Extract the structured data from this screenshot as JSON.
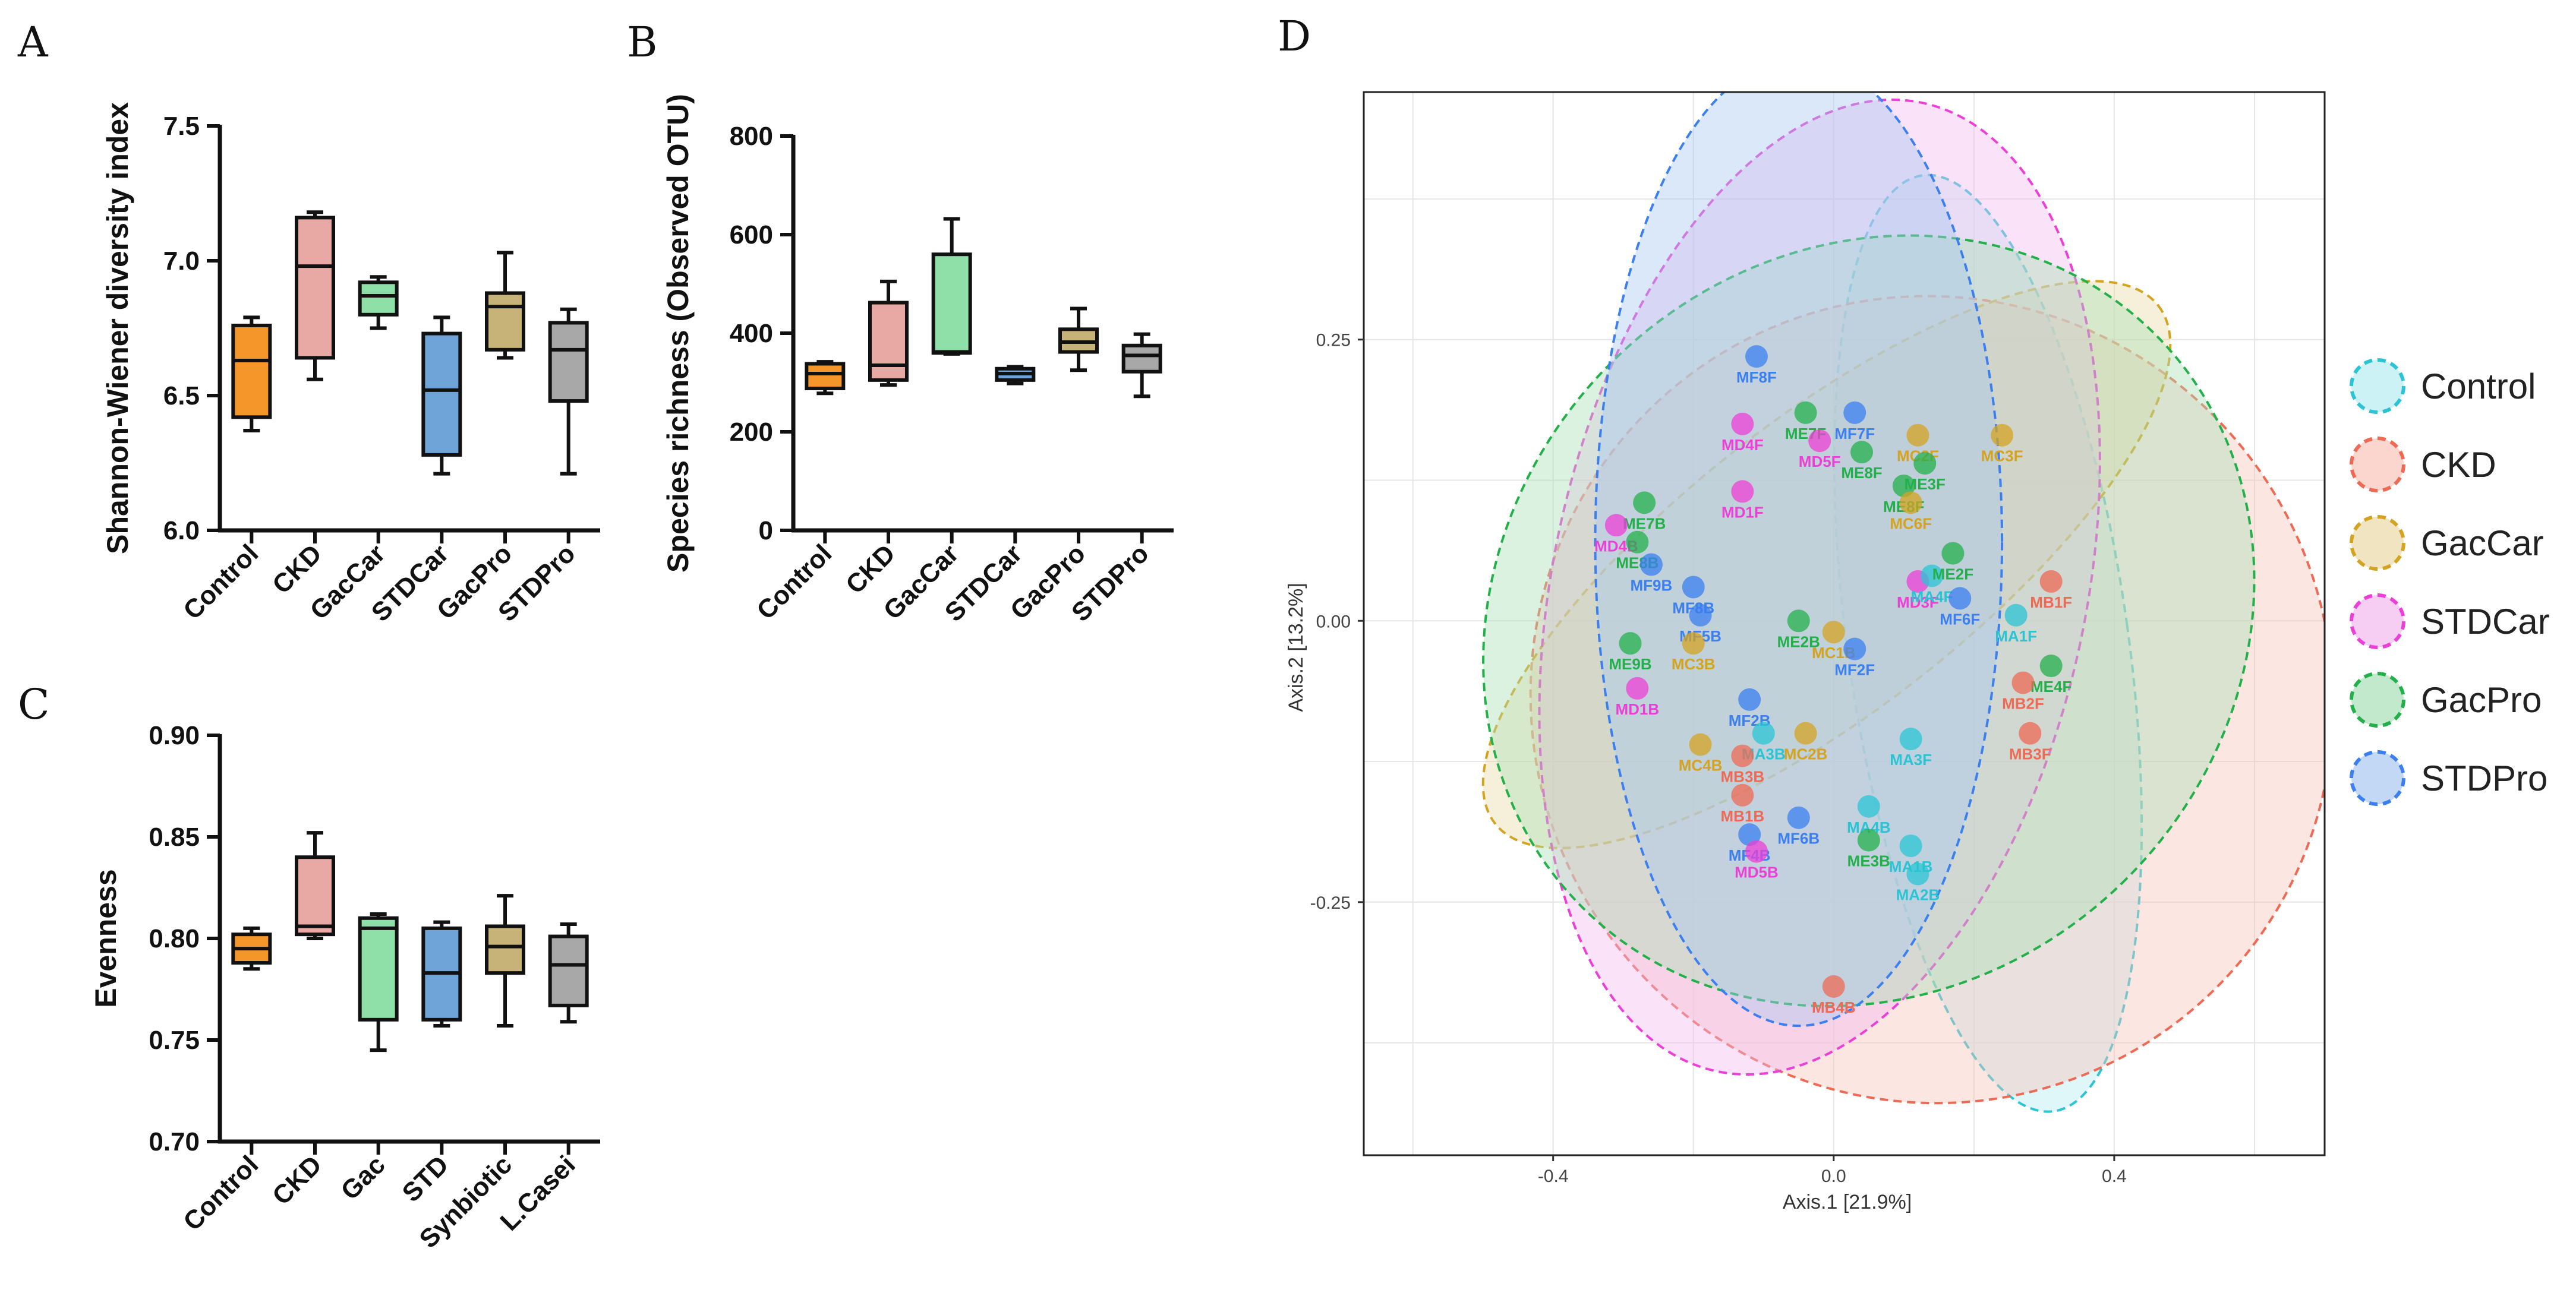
{
  "chart_data": [
    {
      "id": "A",
      "type": "boxplot",
      "panel_label": "A",
      "ylabel": "Shannon-Wiener diversity index",
      "ylim": [
        6.0,
        7.5
      ],
      "yticks": [
        "6.0",
        "6.5",
        "7.0",
        "7.5"
      ],
      "categories": [
        "Control",
        "CKD",
        "GacCar",
        "STDCar",
        "GacPro",
        "STDPro"
      ],
      "colors": [
        "#f5962b",
        "#e8a9a5",
        "#8ee0a8",
        "#6fa4d8",
        "#c7b377",
        "#a8a8a8"
      ],
      "boxes": [
        {
          "min": 6.37,
          "q1": 6.42,
          "median": 6.63,
          "q3": 6.76,
          "max": 6.79
        },
        {
          "min": 6.56,
          "q1": 6.64,
          "median": 6.98,
          "q3": 7.16,
          "max": 7.18
        },
        {
          "min": 6.75,
          "q1": 6.8,
          "median": 6.87,
          "q3": 6.92,
          "max": 6.94
        },
        {
          "min": 6.21,
          "q1": 6.28,
          "median": 6.52,
          "q3": 6.73,
          "max": 6.79
        },
        {
          "min": 6.64,
          "q1": 6.67,
          "median": 6.83,
          "q3": 6.88,
          "max": 7.03
        },
        {
          "min": 6.21,
          "q1": 6.48,
          "median": 6.67,
          "q3": 6.77,
          "max": 6.82
        }
      ]
    },
    {
      "id": "B",
      "type": "boxplot",
      "panel_label": "B",
      "ylabel": "Species richness (Observed OTU)",
      "ylim": [
        0,
        800
      ],
      "yticks": [
        "0",
        "200",
        "400",
        "600",
        "800"
      ],
      "categories": [
        "Control",
        "CKD",
        "GacCar",
        "STDCar",
        "GacPro",
        "STDPro"
      ],
      "colors": [
        "#f5962b",
        "#e8a9a5",
        "#8ee0a8",
        "#6fa4d8",
        "#c7b377",
        "#a8a8a8"
      ],
      "boxes": [
        {
          "min": 278,
          "q1": 288,
          "median": 318,
          "q3": 338,
          "max": 342
        },
        {
          "min": 295,
          "q1": 305,
          "median": 335,
          "q3": 462,
          "max": 505
        },
        {
          "min": 358,
          "q1": 360,
          "median": 362,
          "q3": 560,
          "max": 632
        },
        {
          "min": 298,
          "q1": 305,
          "median": 318,
          "q3": 328,
          "max": 332
        },
        {
          "min": 325,
          "q1": 362,
          "median": 382,
          "q3": 408,
          "max": 450
        },
        {
          "min": 272,
          "q1": 322,
          "median": 355,
          "q3": 375,
          "max": 398
        }
      ]
    },
    {
      "id": "C",
      "type": "boxplot",
      "panel_label": "C",
      "ylabel": "Evenness",
      "ylim": [
        0.7,
        0.9
      ],
      "yticks": [
        "0.70",
        "0.75",
        "0.80",
        "0.85",
        "0.90"
      ],
      "categories": [
        "Control",
        "CKD",
        "Gac",
        "STD",
        "Synbiotic",
        "L.Casei"
      ],
      "colors": [
        "#f5962b",
        "#e8a9a5",
        "#8ee0a8",
        "#6fa4d8",
        "#c7b377",
        "#a8a8a8"
      ],
      "boxes": [
        {
          "min": 0.785,
          "q1": 0.788,
          "median": 0.795,
          "q3": 0.802,
          "max": 0.805
        },
        {
          "min": 0.8,
          "q1": 0.802,
          "median": 0.806,
          "q3": 0.84,
          "max": 0.852
        },
        {
          "min": 0.745,
          "q1": 0.76,
          "median": 0.805,
          "q3": 0.81,
          "max": 0.812
        },
        {
          "min": 0.757,
          "q1": 0.76,
          "median": 0.783,
          "q3": 0.805,
          "max": 0.808
        },
        {
          "min": 0.757,
          "q1": 0.783,
          "median": 0.796,
          "q3": 0.806,
          "max": 0.821
        },
        {
          "min": 0.759,
          "q1": 0.767,
          "median": 0.787,
          "q3": 0.801,
          "max": 0.807
        }
      ]
    },
    {
      "id": "D",
      "type": "scatter",
      "panel_label": "D",
      "xlabel": "Axis.1   [21.9%]",
      "ylabel": "Axis.2   [13.2%]",
      "xlim": [
        -0.67,
        0.7
      ],
      "ylim": [
        -0.475,
        0.47
      ],
      "xticks": [
        {
          "v": -0.4,
          "label": "-0.4"
        },
        {
          "v": 0.0,
          "label": "0.0"
        },
        {
          "v": 0.4,
          "label": "0.4"
        }
      ],
      "yticks": [
        {
          "v": 0.25,
          "label": "0.25"
        },
        {
          "v": 0.0,
          "label": "0.00"
        },
        {
          "v": -0.25,
          "label": "-0.25"
        }
      ],
      "groups": [
        {
          "name": "Control",
          "color": "#2ac4d4",
          "fill": "#b6ecf2",
          "ellipse": {
            "cx": 0.22,
            "cy": -0.02,
            "rx": 0.2,
            "ry": 0.42,
            "angle": 8
          }
        },
        {
          "name": "CKD",
          "color": "#ee6a55",
          "fill": "#f9c4b9",
          "ellipse": {
            "cx": 0.14,
            "cy": -0.07,
            "rx": 0.57,
            "ry": 0.36,
            "angle": 32
          }
        },
        {
          "name": "GacCar",
          "color": "#d4a321",
          "fill": "#ead9a6",
          "ellipse": {
            "cx": -0.01,
            "cy": 0.05,
            "rx": 0.6,
            "ry": 0.13,
            "angle": 38
          }
        },
        {
          "name": "STDCar",
          "color": "#ec3fd6",
          "fill": "#f2b9ee",
          "ellipse": {
            "cx": -0.02,
            "cy": 0.03,
            "rx": 0.38,
            "ry": 0.44,
            "angle": -12
          }
        },
        {
          "name": "GacPro",
          "color": "#23b04b",
          "fill": "#a9e0b6",
          "ellipse": {
            "cx": 0.05,
            "cy": 0.0,
            "rx": 0.52,
            "ry": 0.36,
            "angle": -45
          }
        },
        {
          "name": "STDPro",
          "color": "#3b7ff0",
          "fill": "#a8c7f0",
          "ellipse": {
            "cx": -0.05,
            "cy": 0.07,
            "rx": 0.29,
            "ry": 0.43,
            "angle": 0
          }
        }
      ],
      "points": [
        {
          "label": "MF8F",
          "x": -0.11,
          "y": 0.235,
          "group": 5
        },
        {
          "label": "MD4F",
          "x": -0.13,
          "y": 0.175,
          "group": 3
        },
        {
          "label": "ME7F",
          "x": -0.04,
          "y": 0.185,
          "group": 4
        },
        {
          "label": "MF7F",
          "x": 0.03,
          "y": 0.185,
          "group": 5
        },
        {
          "label": "MD5F",
          "x": -0.02,
          "y": 0.16,
          "group": 3
        },
        {
          "label": "MC2F",
          "x": 0.12,
          "y": 0.165,
          "group": 2
        },
        {
          "label": "MC3F",
          "x": 0.24,
          "y": 0.165,
          "group": 2
        },
        {
          "label": "ME8F",
          "x": 0.04,
          "y": 0.15,
          "group": 4
        },
        {
          "label": "ME3F",
          "x": 0.13,
          "y": 0.14,
          "group": 4
        },
        {
          "label": "ME8F",
          "x": 0.1,
          "y": 0.12,
          "group": 4
        },
        {
          "label": "MC6F",
          "x": 0.11,
          "y": 0.105,
          "group": 2
        },
        {
          "label": "MD1F",
          "x": -0.13,
          "y": 0.115,
          "group": 3
        },
        {
          "label": "ME7B",
          "x": -0.27,
          "y": 0.105,
          "group": 4
        },
        {
          "label": "MD4B",
          "x": -0.31,
          "y": 0.085,
          "group": 3
        },
        {
          "label": "ME8B",
          "x": -0.28,
          "y": 0.07,
          "group": 4
        },
        {
          "label": "MF9B",
          "x": -0.26,
          "y": 0.05,
          "group": 5
        },
        {
          "label": "MF8B",
          "x": -0.2,
          "y": 0.03,
          "group": 5
        },
        {
          "label": "MF5B",
          "x": -0.19,
          "y": 0.005,
          "group": 5
        },
        {
          "label": "MC3B",
          "x": -0.2,
          "y": -0.02,
          "group": 2
        },
        {
          "label": "ME2B",
          "x": -0.05,
          "y": 0.0,
          "group": 4
        },
        {
          "label": "MC1B",
          "x": 0.0,
          "y": -0.01,
          "group": 2
        },
        {
          "label": "MF2F",
          "x": 0.03,
          "y": -0.025,
          "group": 5
        },
        {
          "label": "MD3F",
          "x": 0.12,
          "y": 0.035,
          "group": 3
        },
        {
          "label": "MA4F",
          "x": 0.14,
          "y": 0.04,
          "group": 0
        },
        {
          "label": "ME2F",
          "x": 0.17,
          "y": 0.06,
          "group": 4
        },
        {
          "label": "MF6F",
          "x": 0.18,
          "y": 0.02,
          "group": 5
        },
        {
          "label": "MB1F",
          "x": 0.31,
          "y": 0.035,
          "group": 1
        },
        {
          "label": "MA1F",
          "x": 0.26,
          "y": 0.005,
          "group": 0
        },
        {
          "label": "ME4F",
          "x": 0.31,
          "y": -0.04,
          "group": 4
        },
        {
          "label": "MB2F",
          "x": 0.27,
          "y": -0.055,
          "group": 1
        },
        {
          "label": "MB3F",
          "x": 0.28,
          "y": -0.1,
          "group": 1
        },
        {
          "label": "ME9B",
          "x": -0.29,
          "y": -0.02,
          "group": 4
        },
        {
          "label": "MD1B",
          "x": -0.28,
          "y": -0.06,
          "group": 3
        },
        {
          "label": "MF2B",
          "x": -0.12,
          "y": -0.07,
          "group": 5
        },
        {
          "label": "MA3B",
          "x": -0.1,
          "y": -0.1,
          "group": 0
        },
        {
          "label": "MC2B",
          "x": -0.04,
          "y": -0.1,
          "group": 2
        },
        {
          "label": "MC4B",
          "x": -0.19,
          "y": -0.11,
          "group": 2
        },
        {
          "label": "MB3B",
          "x": -0.13,
          "y": -0.12,
          "group": 1
        },
        {
          "label": "MA3F",
          "x": 0.11,
          "y": -0.105,
          "group": 0
        },
        {
          "label": "MB1B",
          "x": -0.13,
          "y": -0.155,
          "group": 1
        },
        {
          "label": "MF6B",
          "x": -0.05,
          "y": -0.175,
          "group": 5
        },
        {
          "label": "MF4B",
          "x": -0.12,
          "y": -0.19,
          "group": 5
        },
        {
          "label": "MD5B",
          "x": -0.11,
          "y": -0.205,
          "group": 3
        },
        {
          "label": "MA4B",
          "x": 0.05,
          "y": -0.165,
          "group": 0
        },
        {
          "label": "ME3B",
          "x": 0.05,
          "y": -0.195,
          "group": 4
        },
        {
          "label": "MA1B",
          "x": 0.11,
          "y": -0.2,
          "group": 0
        },
        {
          "label": "MA2B",
          "x": 0.12,
          "y": -0.225,
          "group": 0
        },
        {
          "label": "MB4B",
          "x": 0.0,
          "y": -0.325,
          "group": 1
        }
      ]
    }
  ]
}
